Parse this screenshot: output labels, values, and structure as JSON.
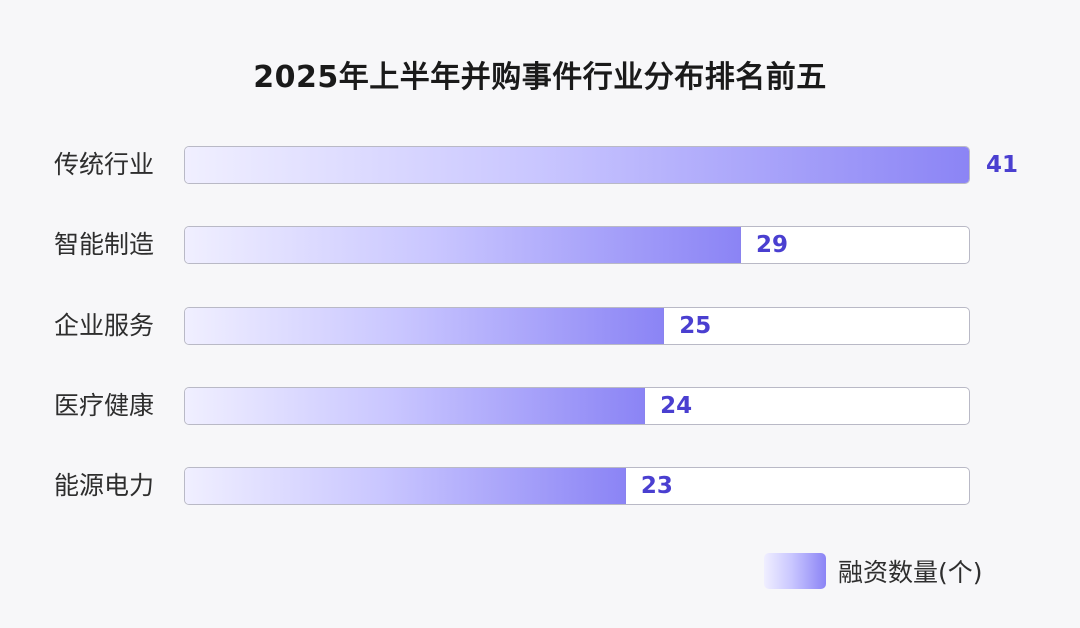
{
  "chart_data": {
    "type": "bar",
    "orientation": "horizontal",
    "title": "2025年上半年并购事件行业分布排名前五",
    "categories": [
      "传统行业",
      "智能制造",
      "企业服务",
      "医疗健康",
      "能源电力"
    ],
    "series": [
      {
        "name": "融资数量(个)",
        "values": [
          41,
          29,
          25,
          24,
          23
        ]
      }
    ],
    "xlim": [
      0,
      41
    ],
    "grid": false,
    "legend_position": "bottom-right",
    "colors": {
      "bar_start": "#f0efff",
      "bar_end": "#8b84f5",
      "value_label": "#4a3fd0"
    }
  }
}
